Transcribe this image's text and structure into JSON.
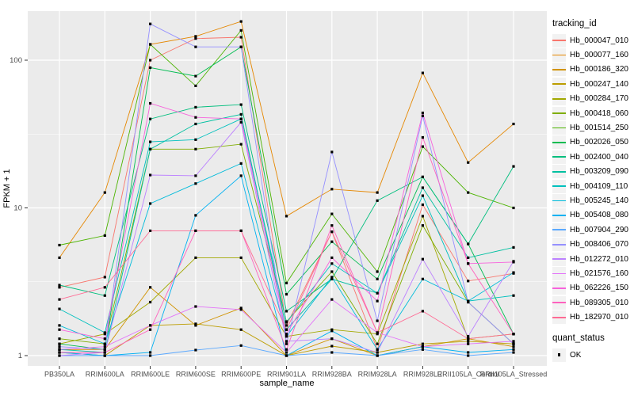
{
  "figure": {
    "bg": "#FFFFFF",
    "panel_bg": "#EBEBEB",
    "grid_color": "#FFFFFF",
    "tick_color": "#333333",
    "tick_label_color": "#4D4D4D",
    "point_color": "#000000"
  },
  "axes": {
    "x": {
      "label": "sample_name",
      "tick_labels": [
        "PB350LA",
        "RRIM600LA",
        "RRIM600LE",
        "RRIM600SE",
        "RRIM600PE",
        "RRIM901LA",
        "RRIM928BA",
        "RRIM928LA",
        "RRIM928LE",
        "RRII105LA_Control",
        "RRII105LA_Stressed"
      ]
    },
    "y": {
      "label": "FPKM + 1",
      "tick_labels": [
        "1",
        "10",
        "100"
      ],
      "tick_values": [
        1,
        10,
        100
      ],
      "minor_values": [
        3.1623,
        31.623
      ],
      "scale": "log10",
      "range": [
        0.85,
        215
      ]
    }
  },
  "legend": {
    "tracking_title": "tracking_id",
    "quant_title": "quant_status",
    "quant_entries": [
      {
        "label": "OK",
        "marker": "square",
        "color": "#000000"
      }
    ]
  },
  "chart_data": {
    "type": "line",
    "title": "",
    "xlabel": "sample_name",
    "ylabel": "FPKM + 1",
    "yscale": "log10",
    "ylim": [
      0.85,
      215
    ],
    "grid": true,
    "legend_position": "right",
    "point_marker": "black-square",
    "categories": [
      "PB350LA",
      "RRIM600LA",
      "RRIM600LE",
      "RRIM600SE",
      "RRIM600PE",
      "RRIM901LA",
      "RRIM928BA",
      "RRIM928LA",
      "RRIM928LE",
      "RRII105LA_Control",
      "RRII105LA_Stressed"
    ],
    "series": [
      {
        "name": "Hb_000047_010",
        "color": "#F8766D",
        "values": [
          2.9,
          3.4,
          100,
          140,
          143,
          1.6,
          6.9,
          1.1,
          10.5,
          3.2,
          3.6
        ]
      },
      {
        "name": "Hb_000077_160",
        "color": "#E58700",
        "values": [
          4.6,
          12.7,
          128,
          145,
          183,
          8.8,
          13.4,
          12.7,
          82,
          20.3,
          37
        ]
      },
      {
        "name": "Hb_000186_320",
        "color": "#D19300",
        "values": [
          1.1,
          1.1,
          2.9,
          1.6,
          2.1,
          1.0,
          1.3,
          1.0,
          1.15,
          1.3,
          1.15
        ]
      },
      {
        "name": "Hb_000247_140",
        "color": "#BC9D00",
        "values": [
          1.05,
          1.0,
          1.6,
          1.64,
          1.5,
          1.0,
          1.16,
          1.05,
          1.2,
          1.25,
          1.2
        ]
      },
      {
        "name": "Hb_000284_170",
        "color": "#A2A800",
        "values": [
          1.2,
          1.4,
          2.3,
          4.6,
          4.6,
          1.35,
          1.5,
          1.4,
          8.8,
          1.3,
          1.4
        ]
      },
      {
        "name": "Hb_000418_060",
        "color": "#7FAD00",
        "values": [
          1.3,
          1.2,
          25,
          25,
          27,
          1.7,
          3.7,
          1.2,
          7.6,
          2.3,
          1.2
        ]
      },
      {
        "name": "Hb_001514_250",
        "color": "#4CB400",
        "values": [
          5.6,
          6.5,
          128,
          67,
          159,
          3.1,
          9.1,
          3.7,
          26,
          12.7,
          10
        ]
      },
      {
        "name": "Hb_002026_050",
        "color": "#00BC51",
        "values": [
          1.2,
          1.1,
          89,
          78,
          123,
          2.6,
          5.9,
          3.3,
          16.2,
          5.7,
          1.4
        ]
      },
      {
        "name": "Hb_002400_040",
        "color": "#00BE7D",
        "values": [
          3.0,
          2.55,
          40,
          48,
          50,
          2.0,
          3.3,
          11.2,
          16.2,
          5.7,
          19.1
        ]
      },
      {
        "name": "Hb_003209_090",
        "color": "#00C0A1",
        "values": [
          1.1,
          1.05,
          25,
          37,
          43,
          1.5,
          3.3,
          2.65,
          13.7,
          4.6,
          5.4
        ]
      },
      {
        "name": "Hb_004109_110",
        "color": "#00C0BE",
        "values": [
          2.07,
          1.43,
          28,
          29,
          40,
          1.68,
          4.2,
          2.65,
          12.1,
          2.34,
          2.55
        ]
      },
      {
        "name": "Hb_005245_140",
        "color": "#00BBDA",
        "values": [
          1.6,
          1.2,
          10.7,
          14.6,
          20,
          1.35,
          3.4,
          1.1,
          3.3,
          2.34,
          3.65
        ]
      },
      {
        "name": "Hb_005408_080",
        "color": "#00B1F2",
        "values": [
          1.05,
          1.0,
          1.05,
          8.9,
          16.5,
          1.0,
          1.47,
          1.0,
          1.15,
          1.05,
          1.1
        ]
      },
      {
        "name": "Hb_007904_290",
        "color": "#5CA9FF",
        "values": [
          1.0,
          1.0,
          1.0,
          1.09,
          1.17,
          1.0,
          1.05,
          1.0,
          1.1,
          1.0,
          1.05
        ]
      },
      {
        "name": "Hb_008406_070",
        "color": "#9590FF",
        "values": [
          1.15,
          1.1,
          176,
          123,
          123,
          1.2,
          23.9,
          1.72,
          42,
          2.3,
          1.2
        ]
      },
      {
        "name": "Hb_012272_010",
        "color": "#BC81FF",
        "values": [
          1.0,
          1.05,
          16.7,
          16.5,
          38,
          1.25,
          1.3,
          1.05,
          4.5,
          1.35,
          4.35
        ]
      },
      {
        "name": "Hb_021576_160",
        "color": "#E373F9",
        "values": [
          1.1,
          1.15,
          1.6,
          2.15,
          2.05,
          1.05,
          2.4,
          1.43,
          1.15,
          1.2,
          1.25
        ]
      },
      {
        "name": "Hb_062226_150",
        "color": "#F763DC",
        "values": [
          1.5,
          1.3,
          51,
          41,
          40,
          1.4,
          4.6,
          2.34,
          44,
          4.2,
          4.3
        ]
      },
      {
        "name": "Hb_089305_010",
        "color": "#FF62BE",
        "values": [
          1.05,
          1.05,
          1.5,
          7.0,
          7.0,
          1.1,
          7.6,
          1.43,
          30,
          4.2,
          1.4
        ]
      },
      {
        "name": "Hb_182970_010",
        "color": "#FF6B94",
        "values": [
          2.4,
          2.9,
          7.0,
          7.0,
          7.0,
          1.5,
          6.9,
          1.43,
          2.0,
          1.3,
          1.4
        ]
      }
    ]
  }
}
